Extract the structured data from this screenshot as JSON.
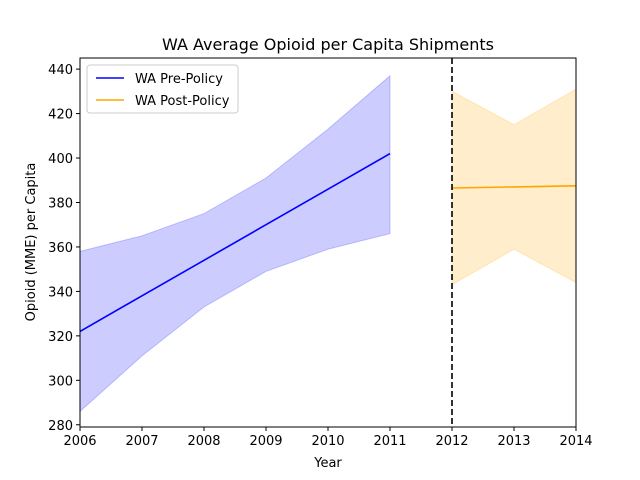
{
  "chart_data": {
    "type": "line",
    "title": "WA Average Opioid per Capita Shipments",
    "xlabel": "Year",
    "ylabel": "Opioid (MME) per Capita",
    "xlim": [
      2006,
      2014
    ],
    "ylim": [
      279,
      445
    ],
    "xticks": [
      2006,
      2007,
      2008,
      2009,
      2010,
      2011,
      2012,
      2013,
      2014
    ],
    "yticks": [
      280,
      300,
      320,
      340,
      360,
      380,
      400,
      420,
      440
    ],
    "legend_position": "top-left",
    "grid": false,
    "vline": {
      "x": 2012,
      "style": "dashed",
      "color": "#000000"
    },
    "series": [
      {
        "name": "WA Pre-Policy",
        "color": "#0000ff",
        "band_color": "#0000ff",
        "x": [
          2006,
          2007,
          2008,
          2009,
          2010,
          2011
        ],
        "y": [
          322,
          338,
          354,
          370,
          386,
          402
        ],
        "lower": [
          286,
          311,
          333,
          349,
          359,
          366
        ],
        "upper": [
          358,
          365,
          375,
          391,
          413,
          437
        ]
      },
      {
        "name": "WA Post-Policy",
        "color": "#ffa500",
        "band_color": "#ffa500",
        "x": [
          2012,
          2013,
          2014
        ],
        "y": [
          386.5,
          387,
          387.5
        ],
        "lower": [
          343,
          359,
          344
        ],
        "upper": [
          430,
          415,
          431
        ]
      }
    ]
  }
}
